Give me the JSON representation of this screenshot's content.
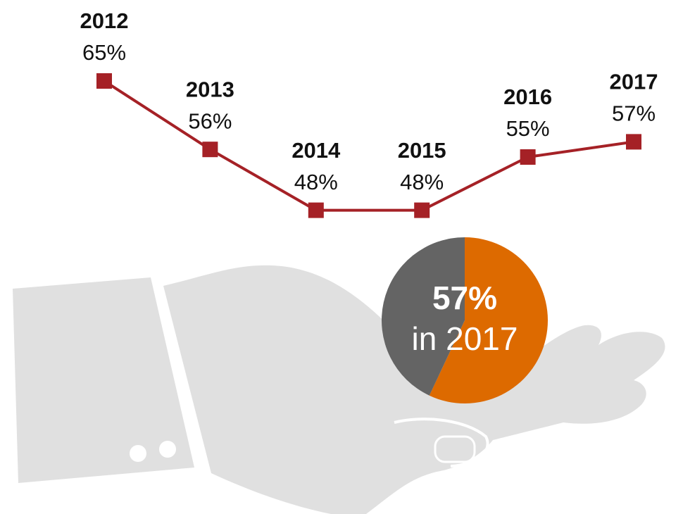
{
  "chart_data": [
    {
      "type": "line",
      "categories": [
        "2012",
        "2013",
        "2014",
        "2015",
        "2016",
        "2017"
      ],
      "values": [
        65,
        56,
        48,
        48,
        55,
        57
      ],
      "value_labels": [
        "65%",
        "56%",
        "48%",
        "48%",
        "55%",
        "57%"
      ],
      "color": "#a52126"
    },
    {
      "type": "pie",
      "values": [
        57,
        43
      ],
      "value_labels": [
        "57%",
        null
      ],
      "colors": [
        "#dd6a00",
        "#646464"
      ],
      "subtitle": "in 2017"
    }
  ]
}
